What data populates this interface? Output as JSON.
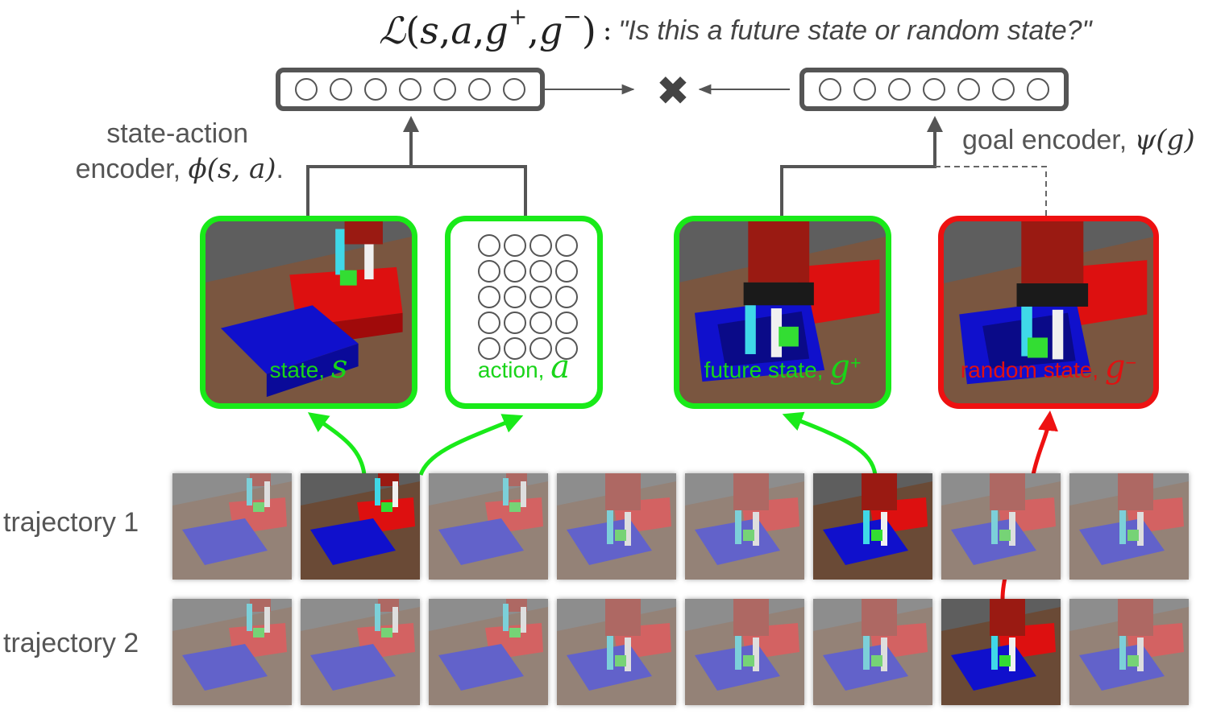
{
  "loss": {
    "L": "ℒ",
    "open": "(",
    "s": "s",
    "sep1": ", ",
    "a": "a",
    "sep2": ", ",
    "gpos": "g",
    "gpos_sup": "+",
    "sep3": ", ",
    "gneg": "g",
    "gneg_sup": "−",
    "close": ")",
    "colon": ":",
    "question": "\"Is this a future state or random state?\""
  },
  "encoders": {
    "state_action_label_line1": "state-action",
    "state_action_label_line2": "encoder, ",
    "state_action_math": "ϕ(s, a)",
    "state_action_period": ".",
    "goal_label": "goal encoder, ",
    "goal_math": "ψ(g)",
    "neurons_per_encoder": 7,
    "multiply_icon": "✖"
  },
  "panels": {
    "state": {
      "text": "state, ",
      "math": "s"
    },
    "action": {
      "text": "action, ",
      "math": "a",
      "neurons": 20
    },
    "future": {
      "text": "future state, ",
      "math": "g",
      "sup": "+"
    },
    "random": {
      "text": "random state, ",
      "math": "g",
      "sup": "−"
    }
  },
  "trajectories": [
    {
      "label": "trajectory 1",
      "frames": 8,
      "highlighted": [
        1,
        5
      ]
    },
    {
      "label": "trajectory 2",
      "frames": 8,
      "highlighted": [
        6
      ]
    }
  ],
  "colors": {
    "positive": "#19ea19",
    "negative": "#ee1111",
    "encoder": "#555555",
    "blue_box": "#1010cc",
    "red_box": "#dd1010",
    "robot": "#9a1a12",
    "floor": "#6a4a36"
  },
  "icons": [
    "neuron-circle",
    "multiply-icon",
    "arrow-icon"
  ]
}
